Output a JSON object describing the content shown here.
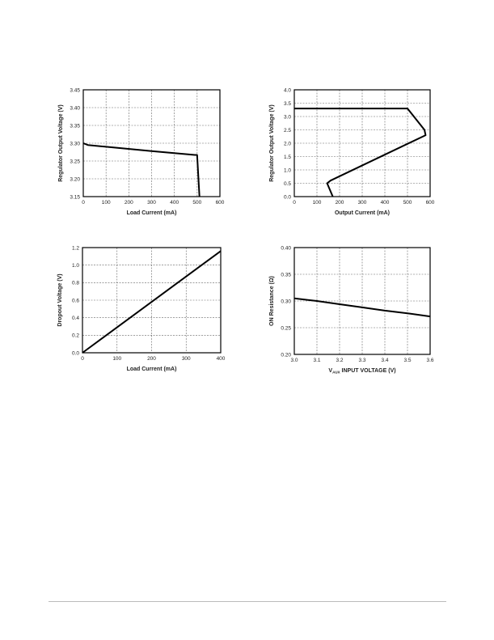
{
  "chart_data": [
    {
      "type": "line",
      "xlabel": "Load Current (mA)",
      "ylabel": "Regulator Output Voltage (V)",
      "xlim": [
        0,
        600
      ],
      "ylim": [
        3.15,
        3.45
      ],
      "xticks": [
        "0",
        "100",
        "200",
        "300",
        "400",
        "500",
        "600"
      ],
      "yticks": [
        "3.15",
        "3.20",
        "3.25",
        "3.30",
        "3.35",
        "3.40",
        "3.45"
      ],
      "grid": true,
      "x": [
        0,
        20,
        100,
        300,
        490,
        500,
        510
      ],
      "y": [
        3.3,
        3.295,
        3.29,
        3.278,
        3.267,
        3.267,
        3.15
      ]
    },
    {
      "type": "line",
      "xlabel": "Output Current (mA)",
      "ylabel": "Regulator Output Voltage (V)",
      "xlim": [
        0,
        600
      ],
      "ylim": [
        0,
        4.0
      ],
      "xticks": [
        "0",
        "100",
        "200",
        "300",
        "400",
        "500",
        "600"
      ],
      "yticks": [
        "0.0",
        "0.5",
        "1.0",
        "1.5",
        "2.0",
        "2.5",
        "3.0",
        "3.5",
        "4.0"
      ],
      "grid": true,
      "x": [
        0,
        500,
        575,
        580,
        160,
        145,
        170
      ],
      "y": [
        3.3,
        3.3,
        2.5,
        2.3,
        0.6,
        0.5,
        0.0
      ]
    },
    {
      "type": "line",
      "xlabel": "Load Current (mA)",
      "ylabel": "Dropout Voltage (V)",
      "xlim": [
        0,
        400
      ],
      "ylim": [
        0,
        1.2
      ],
      "xticks": [
        "0",
        "100",
        "200",
        "300",
        "400"
      ],
      "yticks": [
        "0.0",
        "0.2",
        "0.4",
        "0.6",
        "0.8",
        "1.0",
        "1.2"
      ],
      "grid": true,
      "x": [
        0,
        400
      ],
      "y": [
        0.0,
        1.16
      ]
    },
    {
      "type": "line",
      "xlabel": "V",
      "xlabel_sub": "AUX",
      "xlabel_rest": " INPUT VOLTAGE (V)",
      "ylabel": "ON Resistance (Ω)",
      "xlim": [
        3.0,
        3.6
      ],
      "ylim": [
        0.2,
        0.4
      ],
      "xticks": [
        "3.0",
        "3.1",
        "3.2",
        "3.3",
        "3.4",
        "3.5",
        "3.6"
      ],
      "yticks": [
        "0.20",
        "0.25",
        "0.30",
        "0.35",
        "0.40"
      ],
      "grid": true,
      "x": [
        3.0,
        3.1,
        3.2,
        3.3,
        3.4,
        3.5,
        3.6
      ],
      "y": [
        0.305,
        0.3,
        0.294,
        0.288,
        0.282,
        0.277,
        0.271
      ]
    }
  ]
}
